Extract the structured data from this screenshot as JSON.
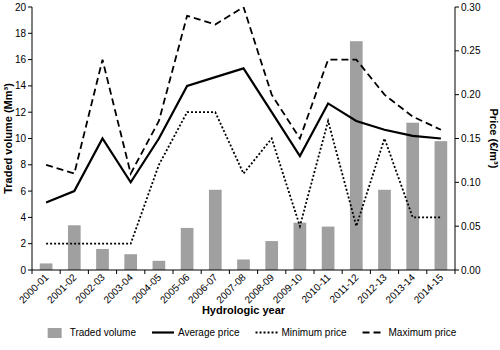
{
  "chart_data": {
    "type": "bar",
    "x_label": "Hydrologic year",
    "y_label": "Traded volume (Mm³)",
    "y2_label": "Price (€/m³)",
    "categories": [
      "2000-01",
      "2001-02",
      "2002-03",
      "2003-04",
      "2004-05",
      "2005-06",
      "2006-07",
      "2007-08",
      "2008-09",
      "2009-10",
      "2010-11",
      "2011-12",
      "2012-13",
      "2013-14",
      "2014-15"
    ],
    "series": [
      {
        "name": "Traded volume",
        "type": "bar",
        "color": "#a0a0a0",
        "values": [
          0.5,
          3.4,
          1.6,
          1.2,
          0.7,
          3.2,
          6.1,
          0.8,
          2.2,
          3.6,
          3.3,
          17.4,
          6.1,
          11.2,
          9.8
        ]
      },
      {
        "name": "Average price",
        "type": "line",
        "axis": "y2",
        "color": "#000000",
        "line_style": "solid",
        "values": [
          0.077,
          0.09,
          0.15,
          0.1,
          0.15,
          0.21,
          0.22,
          0.23,
          0.18,
          0.13,
          0.19,
          0.17,
          0.16,
          0.153,
          0.15
        ]
      },
      {
        "name": "Minimum price",
        "type": "line",
        "axis": "y2",
        "color": "#000000",
        "line_style": "dotted",
        "values": [
          0.03,
          0.03,
          0.03,
          0.03,
          0.12,
          0.18,
          0.18,
          0.11,
          0.15,
          0.05,
          0.17,
          0.05,
          0.15,
          0.06,
          0.06
        ]
      },
      {
        "name": "Maximum price",
        "type": "line",
        "axis": "y2",
        "color": "#000000",
        "line_style": "dashed",
        "values": [
          0.12,
          0.11,
          0.24,
          0.11,
          0.17,
          0.29,
          0.28,
          0.3,
          0.2,
          0.15,
          0.24,
          0.24,
          0.2,
          0.175,
          0.16
        ]
      }
    ],
    "ylim": [
      0,
      20
    ],
    "yticks": [
      0,
      2,
      4,
      6,
      8,
      10,
      12,
      14,
      16,
      18,
      20
    ],
    "y2lim": [
      0,
      0.3
    ],
    "y2ticks": [
      {
        "value": 0,
        "label": "0.00"
      },
      {
        "value": 0.05,
        "label": "0.05"
      },
      {
        "value": 0.1,
        "label": "0.10"
      },
      {
        "value": 0.15,
        "label": "0.15"
      },
      {
        "value": 0.2,
        "label": "0.20"
      },
      {
        "value": 0.25,
        "label": "0.25"
      },
      {
        "value": 0.3,
        "label": "0.30"
      }
    ],
    "grid": false,
    "legend": "bottom"
  }
}
